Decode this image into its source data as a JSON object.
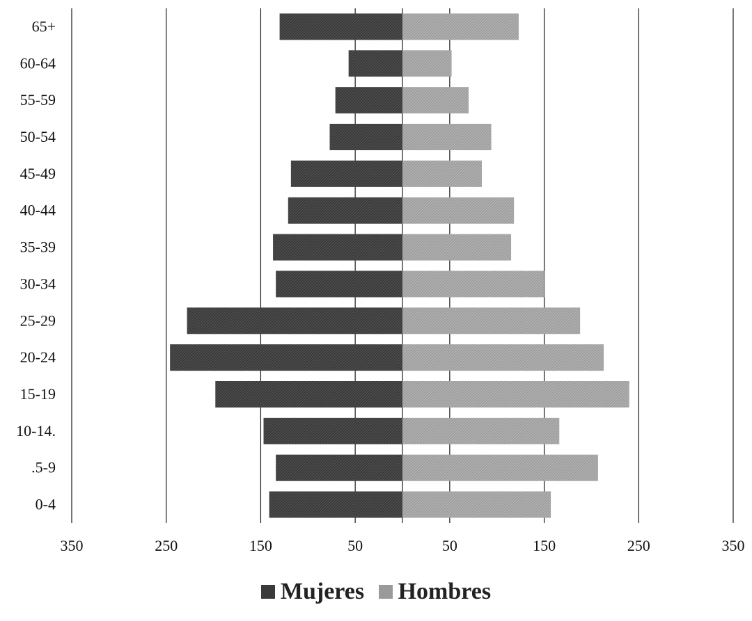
{
  "chart_data": {
    "type": "bar",
    "orientation": "horizontal",
    "layout": "population-pyramid",
    "categories": [
      "65+",
      "60-64",
      "55-59",
      "50-54",
      "45-49",
      "40-44",
      "35-39",
      "30-34",
      "25-29",
      "20-24",
      "15-19",
      "10-14.",
      ".5-9",
      "0-4"
    ],
    "series": [
      {
        "name": "Mujeres",
        "side": "left",
        "color": "#3a3a3a",
        "values": [
          130,
          57,
          71,
          77,
          118,
          121,
          137,
          134,
          228,
          246,
          198,
          147,
          134,
          141
        ]
      },
      {
        "name": "Hombres",
        "side": "right",
        "color": "#9a9a9a",
        "values": [
          123,
          52,
          70,
          94,
          84,
          118,
          115,
          150,
          188,
          213,
          240,
          166,
          207,
          157
        ]
      }
    ],
    "xlim": [
      -350,
      350
    ],
    "xticks": [
      -350,
      -250,
      -150,
      -50,
      0,
      50,
      150,
      250,
      350
    ],
    "xtick_labels": [
      "350",
      "250",
      "150",
      "50",
      "",
      "50",
      "150",
      "250",
      "350"
    ],
    "grid": "vertical",
    "legend_position": "bottom"
  }
}
